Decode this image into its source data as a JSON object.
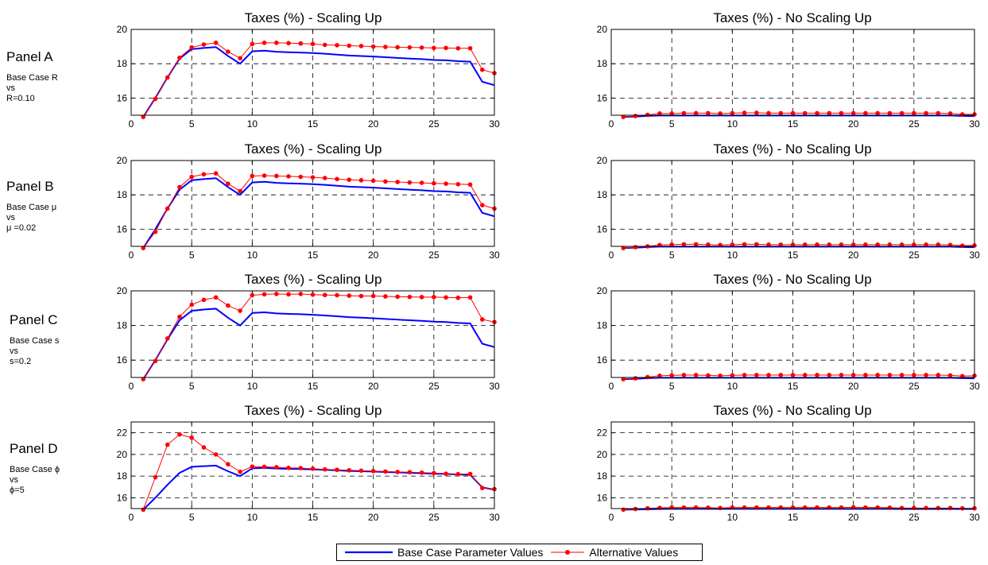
{
  "panels": [
    {
      "label": "Panel A",
      "desc": [
        "Base Case R",
        "vs",
        "R=0.10"
      ]
    },
    {
      "label": "Panel B",
      "desc": [
        "Base Case μ",
        "vs",
        "μ =0.02"
      ]
    },
    {
      "label": "Panel C",
      "desc": [
        "Base Case s",
        "vs",
        "s=0.2"
      ]
    },
    {
      "label": "Panel D",
      "desc": [
        "Base Case ϕ",
        "vs",
        "ϕ=5"
      ]
    }
  ],
  "legend": {
    "base_label": "Base Case Parameter Values",
    "alt_label": "Alternative Values"
  },
  "colors": {
    "base": "#0000ff",
    "alt": "#ff0000",
    "marker": "#ff0000"
  },
  "chart_data": [
    {
      "type": "line",
      "panel": "Panel A",
      "title": "Taxes (%) - Scaling Up",
      "xlim": [
        0,
        30
      ],
      "ylim": [
        15,
        20
      ],
      "xticks": [
        0,
        5,
        10,
        15,
        20,
        25,
        30
      ],
      "yticks": [
        16,
        18,
        20
      ],
      "grid": true,
      "x": [
        1,
        2,
        3,
        4,
        5,
        6,
        7,
        8,
        9,
        10,
        11,
        12,
        13,
        14,
        15,
        16,
        17,
        18,
        19,
        20,
        21,
        22,
        23,
        24,
        25,
        26,
        27,
        28,
        29,
        30
      ],
      "series": [
        {
          "name": "Base Case Parameter Values",
          "values": [
            14.9,
            16.0,
            17.2,
            18.3,
            18.85,
            18.92,
            18.97,
            18.45,
            18.0,
            18.72,
            18.76,
            18.7,
            18.67,
            18.65,
            18.62,
            18.58,
            18.53,
            18.48,
            18.45,
            18.42,
            18.38,
            18.34,
            18.3,
            18.27,
            18.22,
            18.2,
            18.15,
            18.12,
            16.95,
            16.75
          ]
        },
        {
          "name": "Alternative Values",
          "values": [
            14.9,
            15.95,
            17.2,
            18.35,
            18.95,
            19.12,
            19.22,
            18.7,
            18.32,
            19.15,
            19.22,
            19.22,
            19.2,
            19.18,
            19.15,
            19.1,
            19.08,
            19.05,
            19.03,
            19.0,
            18.98,
            18.96,
            18.95,
            18.94,
            18.92,
            18.92,
            18.9,
            18.9,
            17.65,
            17.45
          ]
        }
      ]
    },
    {
      "type": "line",
      "panel": "Panel A",
      "title": "Taxes (%) - No Scaling Up",
      "xlim": [
        0,
        30
      ],
      "ylim": [
        15,
        20
      ],
      "xticks": [
        0,
        5,
        10,
        15,
        20,
        25,
        30
      ],
      "yticks": [
        16,
        18,
        20
      ],
      "grid": true,
      "x": [
        1,
        2,
        3,
        4,
        5,
        6,
        7,
        8,
        9,
        10,
        11,
        12,
        13,
        14,
        15,
        16,
        17,
        18,
        19,
        20,
        21,
        22,
        23,
        24,
        25,
        26,
        27,
        28,
        29,
        30
      ],
      "series": [
        {
          "name": "Base Case Parameter Values",
          "values": [
            14.9,
            14.92,
            14.96,
            14.98,
            14.98,
            14.98,
            14.98,
            14.98,
            14.98,
            14.98,
            14.98,
            14.98,
            14.98,
            14.98,
            14.98,
            14.98,
            14.98,
            14.98,
            14.98,
            14.98,
            14.98,
            14.98,
            14.98,
            14.98,
            14.98,
            14.98,
            14.98,
            14.98,
            14.96,
            14.95
          ]
        },
        {
          "name": "Alternative Values",
          "values": [
            14.9,
            14.95,
            15.02,
            15.1,
            15.1,
            15.12,
            15.12,
            15.12,
            15.1,
            15.12,
            15.14,
            15.14,
            15.12,
            15.12,
            15.12,
            15.12,
            15.12,
            15.12,
            15.12,
            15.12,
            15.12,
            15.12,
            15.12,
            15.12,
            15.12,
            15.12,
            15.12,
            15.1,
            15.05,
            15.05
          ]
        }
      ]
    },
    {
      "type": "line",
      "panel": "Panel B",
      "title": "Taxes (%) - Scaling Up",
      "xlim": [
        0,
        30
      ],
      "ylim": [
        15,
        20
      ],
      "xticks": [
        0,
        5,
        10,
        15,
        20,
        25,
        30
      ],
      "yticks": [
        16,
        18,
        20
      ],
      "grid": true,
      "x": [
        1,
        2,
        3,
        4,
        5,
        6,
        7,
        8,
        9,
        10,
        11,
        12,
        13,
        14,
        15,
        16,
        17,
        18,
        19,
        20,
        21,
        22,
        23,
        24,
        25,
        26,
        27,
        28,
        29,
        30
      ],
      "series": [
        {
          "name": "Base Case Parameter Values",
          "values": [
            14.9,
            16.0,
            17.2,
            18.3,
            18.85,
            18.92,
            18.97,
            18.45,
            18.0,
            18.72,
            18.76,
            18.7,
            18.67,
            18.65,
            18.62,
            18.58,
            18.53,
            18.48,
            18.45,
            18.42,
            18.38,
            18.34,
            18.3,
            18.27,
            18.22,
            18.2,
            18.15,
            18.12,
            16.95,
            16.75
          ]
        },
        {
          "name": "Alternative Values",
          "values": [
            14.9,
            15.85,
            17.2,
            18.45,
            19.05,
            19.2,
            19.25,
            18.65,
            18.22,
            19.1,
            19.12,
            19.1,
            19.08,
            19.05,
            19.02,
            18.98,
            18.92,
            18.88,
            18.85,
            18.82,
            18.78,
            18.75,
            18.72,
            18.7,
            18.67,
            18.65,
            18.62,
            18.6,
            17.4,
            17.2
          ]
        }
      ]
    },
    {
      "type": "line",
      "panel": "Panel B",
      "title": "Taxes (%) - No Scaling Up",
      "xlim": [
        0,
        30
      ],
      "ylim": [
        15,
        20
      ],
      "xticks": [
        0,
        5,
        10,
        15,
        20,
        25,
        30
      ],
      "yticks": [
        16,
        18,
        20
      ],
      "grid": true,
      "x": [
        1,
        2,
        3,
        4,
        5,
        6,
        7,
        8,
        9,
        10,
        11,
        12,
        13,
        14,
        15,
        16,
        17,
        18,
        19,
        20,
        21,
        22,
        23,
        24,
        25,
        26,
        27,
        28,
        29,
        30
      ],
      "series": [
        {
          "name": "Base Case Parameter Values",
          "values": [
            14.9,
            14.92,
            14.96,
            14.98,
            14.98,
            14.98,
            14.98,
            14.98,
            14.98,
            14.98,
            14.98,
            14.98,
            14.98,
            14.98,
            14.98,
            14.98,
            14.98,
            14.98,
            14.98,
            14.98,
            14.98,
            14.98,
            14.98,
            14.98,
            14.98,
            14.98,
            14.98,
            14.98,
            14.96,
            14.95
          ]
        },
        {
          "name": "Alternative Values",
          "values": [
            14.9,
            14.95,
            15.0,
            15.08,
            15.1,
            15.12,
            15.12,
            15.1,
            15.08,
            15.1,
            15.12,
            15.12,
            15.1,
            15.1,
            15.1,
            15.1,
            15.1,
            15.1,
            15.1,
            15.1,
            15.1,
            15.1,
            15.1,
            15.1,
            15.1,
            15.1,
            15.1,
            15.08,
            15.04,
            15.05
          ]
        }
      ]
    },
    {
      "type": "line",
      "panel": "Panel C",
      "title": "Taxes (%) - Scaling Up",
      "xlim": [
        0,
        30
      ],
      "ylim": [
        15,
        20
      ],
      "xticks": [
        0,
        5,
        10,
        15,
        20,
        25,
        30
      ],
      "yticks": [
        16,
        18,
        20
      ],
      "grid": true,
      "x": [
        1,
        2,
        3,
        4,
        5,
        6,
        7,
        8,
        9,
        10,
        11,
        12,
        13,
        14,
        15,
        16,
        17,
        18,
        19,
        20,
        21,
        22,
        23,
        24,
        25,
        26,
        27,
        28,
        29,
        30
      ],
      "series": [
        {
          "name": "Base Case Parameter Values",
          "values": [
            14.9,
            16.0,
            17.2,
            18.3,
            18.85,
            18.92,
            18.97,
            18.45,
            18.0,
            18.72,
            18.76,
            18.7,
            18.67,
            18.65,
            18.62,
            18.58,
            18.53,
            18.48,
            18.45,
            18.42,
            18.38,
            18.34,
            18.3,
            18.27,
            18.22,
            18.2,
            18.15,
            18.12,
            16.95,
            16.75
          ]
        },
        {
          "name": "Alternative Values",
          "values": [
            14.9,
            15.95,
            17.25,
            18.5,
            19.2,
            19.48,
            19.62,
            19.15,
            18.85,
            19.75,
            19.8,
            19.82,
            19.8,
            19.82,
            19.78,
            19.76,
            19.75,
            19.72,
            19.7,
            19.7,
            19.68,
            19.66,
            19.65,
            19.64,
            19.64,
            19.62,
            19.6,
            19.62,
            18.35,
            18.2
          ]
        }
      ]
    },
    {
      "type": "line",
      "panel": "Panel C",
      "title": "Taxes (%) - No Scaling Up",
      "xlim": [
        0,
        30
      ],
      "ylim": [
        15,
        20
      ],
      "xticks": [
        0,
        5,
        10,
        15,
        20,
        25,
        30
      ],
      "yticks": [
        16,
        18,
        20
      ],
      "grid": true,
      "x": [
        1,
        2,
        3,
        4,
        5,
        6,
        7,
        8,
        9,
        10,
        11,
        12,
        13,
        14,
        15,
        16,
        17,
        18,
        19,
        20,
        21,
        22,
        23,
        24,
        25,
        26,
        27,
        28,
        29,
        30
      ],
      "series": [
        {
          "name": "Base Case Parameter Values",
          "values": [
            14.9,
            14.92,
            14.96,
            14.98,
            14.98,
            14.98,
            14.98,
            14.98,
            14.98,
            14.98,
            14.98,
            14.98,
            14.98,
            14.98,
            14.98,
            14.98,
            14.98,
            14.98,
            14.98,
            14.98,
            14.98,
            14.98,
            14.98,
            14.98,
            14.98,
            14.98,
            14.98,
            14.98,
            14.96,
            14.95
          ]
        },
        {
          "name": "Alternative Values",
          "values": [
            14.9,
            14.95,
            15.02,
            15.1,
            15.12,
            15.14,
            15.14,
            15.12,
            15.1,
            15.12,
            15.14,
            15.14,
            15.14,
            15.14,
            15.14,
            15.14,
            15.14,
            15.14,
            15.14,
            15.14,
            15.14,
            15.14,
            15.14,
            15.14,
            15.14,
            15.14,
            15.14,
            15.12,
            15.08,
            15.1
          ]
        }
      ]
    },
    {
      "type": "line",
      "panel": "Panel D",
      "title": "Taxes (%) - Scaling Up",
      "xlim": [
        0,
        30
      ],
      "ylim": [
        15,
        23
      ],
      "xticks": [
        0,
        5,
        10,
        15,
        20,
        25,
        30
      ],
      "yticks": [
        16,
        18,
        20,
        22
      ],
      "grid": true,
      "x": [
        1,
        2,
        3,
        4,
        5,
        6,
        7,
        8,
        9,
        10,
        11,
        12,
        13,
        14,
        15,
        16,
        17,
        18,
        19,
        20,
        21,
        22,
        23,
        24,
        25,
        26,
        27,
        28,
        29,
        30
      ],
      "series": [
        {
          "name": "Base Case Parameter Values",
          "values": [
            14.9,
            16.0,
            17.2,
            18.3,
            18.85,
            18.92,
            18.97,
            18.45,
            18.0,
            18.72,
            18.76,
            18.7,
            18.67,
            18.65,
            18.62,
            18.58,
            18.53,
            18.48,
            18.45,
            18.42,
            18.38,
            18.34,
            18.3,
            18.27,
            18.22,
            18.2,
            18.15,
            18.12,
            16.95,
            16.75
          ]
        },
        {
          "name": "Alternative Values",
          "values": [
            14.9,
            17.9,
            20.9,
            21.85,
            21.55,
            20.65,
            20.0,
            19.1,
            18.4,
            18.88,
            18.86,
            18.82,
            18.76,
            18.74,
            18.68,
            18.62,
            18.58,
            18.54,
            18.5,
            18.46,
            18.42,
            18.38,
            18.36,
            18.32,
            18.28,
            18.22,
            18.18,
            18.2,
            16.9,
            16.8
          ]
        }
      ]
    },
    {
      "type": "line",
      "panel": "Panel D",
      "title": "Taxes (%) - No Scaling Up",
      "xlim": [
        0,
        30
      ],
      "ylim": [
        15,
        23
      ],
      "xticks": [
        0,
        5,
        10,
        15,
        20,
        25,
        30
      ],
      "yticks": [
        16,
        18,
        20,
        22
      ],
      "grid": true,
      "x": [
        1,
        2,
        3,
        4,
        5,
        6,
        7,
        8,
        9,
        10,
        11,
        12,
        13,
        14,
        15,
        16,
        17,
        18,
        19,
        20,
        21,
        22,
        23,
        24,
        25,
        26,
        27,
        28,
        29,
        30
      ],
      "series": [
        {
          "name": "Base Case Parameter Values",
          "values": [
            14.9,
            14.92,
            14.94,
            14.96,
            14.97,
            14.97,
            14.97,
            14.97,
            14.97,
            14.97,
            14.97,
            14.97,
            14.97,
            14.97,
            14.97,
            14.97,
            14.97,
            14.97,
            14.97,
            14.97,
            14.97,
            14.97,
            14.97,
            14.96,
            14.96,
            14.96,
            14.96,
            14.96,
            14.96,
            14.96
          ]
        },
        {
          "name": "Alternative Values",
          "values": [
            14.9,
            14.96,
            15.02,
            15.06,
            15.1,
            15.1,
            15.1,
            15.08,
            15.05,
            15.1,
            15.1,
            15.1,
            15.1,
            15.1,
            15.1,
            15.1,
            15.1,
            15.1,
            15.1,
            15.12,
            15.1,
            15.1,
            15.08,
            15.05,
            15.05,
            15.05,
            15.05,
            15.05,
            15.02,
            15.02
          ]
        }
      ]
    }
  ]
}
